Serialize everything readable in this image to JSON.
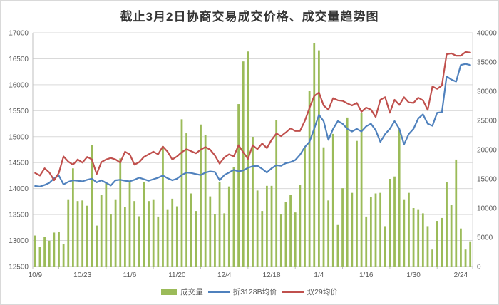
{
  "title": "截止3月2日协商交易成交价格、成交量趋势图",
  "colors": {
    "volume_bar": "#9bbb59",
    "line_3128b": "#4f81bd",
    "line_shuang29": "#c0504d",
    "gridline": "#d9d9d9",
    "axis_line": "#bfbfbf",
    "tick_text": "#595959",
    "title_text": "#353535",
    "background": "#ffffff"
  },
  "legend": {
    "volume_label": "成交量",
    "line3128b_label": "折3128B均价",
    "shuang29_label": "双29均价"
  },
  "chart_data": {
    "type": "combo bar+line",
    "title": "截止3月2日协商交易成交价格、成交量趋势图",
    "grid": true,
    "legend_position": "bottom",
    "n_points": 93,
    "x_tick_positions": [
      0,
      10,
      20,
      30,
      40,
      50,
      60,
      70,
      80,
      90
    ],
    "x_tick_labels": [
      "10/9",
      "10/23",
      "11/6",
      "11/20",
      "12/4",
      "12/18",
      "1/4",
      "1/16",
      "1/30",
      "2/24"
    ],
    "left_axis": {
      "min": 12500,
      "max": 17000,
      "step": 500,
      "ticks": [
        12500,
        13000,
        13500,
        14000,
        14500,
        15000,
        15500,
        16000,
        16500,
        17000
      ]
    },
    "right_axis": {
      "min": 0,
      "max": 40000,
      "step": 5000,
      "ticks": [
        0,
        5000,
        10000,
        15000,
        20000,
        25000,
        30000,
        35000,
        40000
      ]
    },
    "series": [
      {
        "name": "成交量",
        "type": "bar",
        "axis": "right",
        "color": "#9bbb59",
        "values": [
          5300,
          3400,
          5000,
          4400,
          5800,
          5900,
          3800,
          11500,
          16800,
          11200,
          11300,
          10400,
          20800,
          7000,
          12200,
          14400,
          9000,
          11500,
          18500,
          10200,
          14600,
          11200,
          8600,
          14400,
          11200,
          11500,
          8550,
          20600,
          9800,
          11600,
          10300,
          25200,
          22800,
          12500,
          9500,
          24300,
          22500,
          12000,
          9000,
          14500,
          9100,
          13700,
          17000,
          27800,
          35100,
          36800,
          22200,
          13000,
          9500,
          13800,
          13800,
          25000,
          9000,
          11000,
          12200,
          9250,
          14000,
          20500,
          30000,
          38200,
          37000,
          20400,
          11300,
          22700,
          7100,
          13400,
          25500,
          12600,
          21500,
          26300,
          8550,
          11900,
          12500,
          12600,
          6900,
          15000,
          15400,
          23450,
          11500,
          12600,
          10000,
          9800,
          9100,
          6900,
          2900,
          7800,
          8300,
          14400,
          10500,
          18300,
          6500,
          2900,
          4300
        ]
      },
      {
        "name": "折3128B均价",
        "type": "line",
        "axis": "left",
        "color": "#4f81bd",
        "values": [
          14050,
          14040,
          14070,
          14110,
          14200,
          14250,
          14080,
          14130,
          14160,
          14150,
          14140,
          14170,
          14190,
          14120,
          14160,
          14110,
          14060,
          14160,
          14170,
          14150,
          14140,
          14170,
          14210,
          14180,
          14150,
          14180,
          14210,
          14250,
          14200,
          14160,
          14190,
          14260,
          14310,
          14300,
          14280,
          14260,
          14310,
          14330,
          14320,
          14160,
          14260,
          14310,
          14360,
          14330,
          14350,
          14400,
          14430,
          14440,
          14380,
          14310,
          14390,
          14450,
          14440,
          14490,
          14510,
          14550,
          14650,
          14800,
          14900,
          15150,
          15420,
          15300,
          14940,
          15150,
          15300,
          15250,
          15150,
          15100,
          15150,
          15100,
          15200,
          15250,
          15125,
          14900,
          15050,
          15150,
          15300,
          15150,
          14850,
          15050,
          15150,
          15350,
          15430,
          15250,
          15210,
          15460,
          15470,
          16160,
          16100,
          16060,
          16380,
          16400,
          16380
        ]
      },
      {
        "name": "双29均价",
        "type": "line",
        "axis": "left",
        "color": "#c0504d",
        "values": [
          14300,
          14250,
          14390,
          14310,
          14160,
          14300,
          14620,
          14520,
          14460,
          14560,
          14500,
          14610,
          14560,
          14280,
          14510,
          14560,
          14590,
          14560,
          14500,
          14710,
          14660,
          14460,
          14510,
          14610,
          14660,
          14710,
          14660,
          14810,
          14710,
          14560,
          14620,
          14700,
          14760,
          14720,
          14680,
          14750,
          14800,
          14750,
          14640,
          14480,
          14600,
          14660,
          14620,
          14835,
          14700,
          14575,
          14835,
          14760,
          14870,
          14780,
          14940,
          15060,
          15010,
          15080,
          15160,
          15110,
          15110,
          15300,
          15550,
          15780,
          15850,
          15600,
          15520,
          15740,
          15700,
          15690,
          15640,
          15600,
          15650,
          15480,
          15560,
          15520,
          15380,
          15710,
          15760,
          15460,
          15710,
          15610,
          15760,
          15660,
          15650,
          15750,
          15700,
          15515,
          15965,
          15920,
          15985,
          16585,
          16605,
          16560,
          16560,
          16630,
          16620
        ]
      }
    ]
  }
}
